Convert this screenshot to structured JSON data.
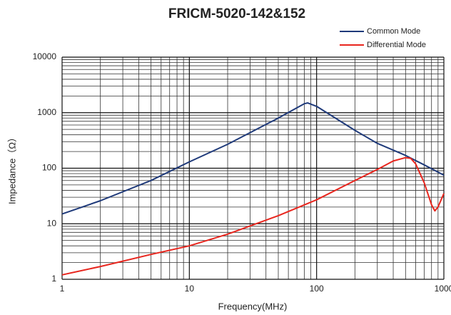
{
  "chart_data": {
    "type": "line",
    "title": "FRICM-5020-142&152",
    "x_label": "Frequency(MHz)",
    "y_label": "Impedance（Ω）",
    "log_x": true,
    "log_y": true,
    "grid": true,
    "minor_grid": true,
    "legend": "top-right",
    "xlim": [
      1,
      1000
    ],
    "ylim": [
      1,
      10000
    ],
    "xticks": [
      1,
      10,
      100,
      1000
    ],
    "yticks": [
      1,
      10,
      100,
      1000,
      10000
    ],
    "series": [
      {
        "name": "Common Mode",
        "color": "#1f3a7a",
        "x": [
          1,
          2,
          5,
          10,
          20,
          50,
          80,
          85,
          100,
          200,
          300,
          500,
          700,
          1000
        ],
        "values": [
          15,
          26,
          60,
          130,
          270,
          800,
          1450,
          1500,
          1300,
          480,
          280,
          170,
          115,
          75
        ]
      },
      {
        "name": "Differential Mode",
        "color": "#e8261e",
        "x": [
          1,
          2,
          5,
          10,
          20,
          50,
          100,
          200,
          300,
          400,
          500,
          550,
          600,
          700,
          800,
          850,
          900,
          1000
        ],
        "values": [
          1.2,
          1.7,
          2.8,
          4,
          6.5,
          14,
          27,
          60,
          95,
          135,
          155,
          150,
          120,
          55,
          22,
          17,
          20,
          35
        ]
      }
    ]
  }
}
